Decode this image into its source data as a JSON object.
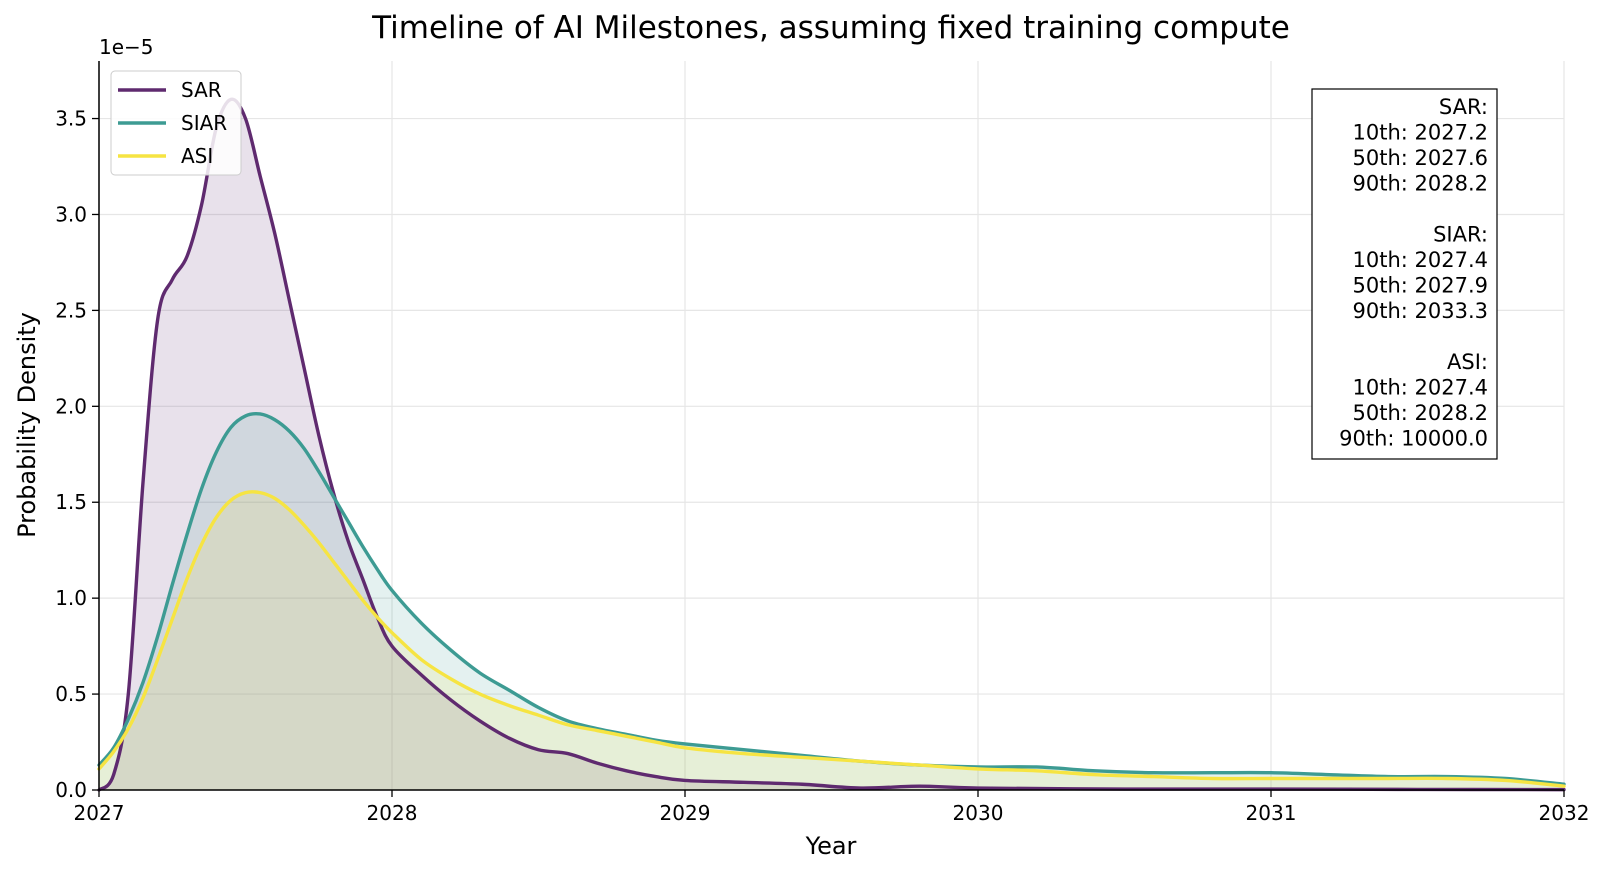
{
  "chart_data": {
    "type": "area",
    "title": "Timeline of AI Milestones, assuming fixed training compute",
    "xlabel": "Year",
    "ylabel": "Probability Density",
    "y_multiplier_label": "1e−5",
    "xlim": [
      2027,
      2032
    ],
    "ylim": [
      0,
      3.8
    ],
    "x_ticks": [
      "2027",
      "2028",
      "2029",
      "2030",
      "2031",
      "2032"
    ],
    "y_ticks": [
      "0.0",
      "0.5",
      "1.0",
      "1.5",
      "2.0",
      "2.5",
      "3.0",
      "3.5"
    ],
    "grid": true,
    "legend_position": "top-left",
    "series": [
      {
        "name": "SAR",
        "color": "#5f2a6f",
        "points": [
          [
            2027.0,
            0.0
          ],
          [
            2027.05,
            0.08
          ],
          [
            2027.1,
            0.5
          ],
          [
            2027.15,
            1.6
          ],
          [
            2027.2,
            2.45
          ],
          [
            2027.25,
            2.66
          ],
          [
            2027.3,
            2.78
          ],
          [
            2027.35,
            3.05
          ],
          [
            2027.4,
            3.45
          ],
          [
            2027.45,
            3.6
          ],
          [
            2027.5,
            3.5
          ],
          [
            2027.55,
            3.2
          ],
          [
            2027.6,
            2.9
          ],
          [
            2027.65,
            2.55
          ],
          [
            2027.7,
            2.2
          ],
          [
            2027.75,
            1.85
          ],
          [
            2027.8,
            1.55
          ],
          [
            2027.85,
            1.3
          ],
          [
            2027.9,
            1.1
          ],
          [
            2027.95,
            0.9
          ],
          [
            2028.0,
            0.75
          ],
          [
            2028.1,
            0.6
          ],
          [
            2028.2,
            0.47
          ],
          [
            2028.3,
            0.36
          ],
          [
            2028.4,
            0.27
          ],
          [
            2028.5,
            0.21
          ],
          [
            2028.6,
            0.19
          ],
          [
            2028.7,
            0.14
          ],
          [
            2028.8,
            0.1
          ],
          [
            2028.9,
            0.07
          ],
          [
            2029.0,
            0.05
          ],
          [
            2029.2,
            0.04
          ],
          [
            2029.4,
            0.03
          ],
          [
            2029.6,
            0.01
          ],
          [
            2029.8,
            0.02
          ],
          [
            2030.0,
            0.01
          ],
          [
            2030.5,
            0.005
          ],
          [
            2031.0,
            0.005
          ],
          [
            2031.5,
            0.003
          ],
          [
            2032.0,
            0.002
          ]
        ]
      },
      {
        "name": "SIAR",
        "color": "#3d9b93",
        "points": [
          [
            2027.0,
            0.13
          ],
          [
            2027.05,
            0.22
          ],
          [
            2027.1,
            0.37
          ],
          [
            2027.15,
            0.56
          ],
          [
            2027.2,
            0.8
          ],
          [
            2027.25,
            1.07
          ],
          [
            2027.3,
            1.33
          ],
          [
            2027.35,
            1.57
          ],
          [
            2027.4,
            1.76
          ],
          [
            2027.45,
            1.89
          ],
          [
            2027.5,
            1.95
          ],
          [
            2027.55,
            1.96
          ],
          [
            2027.6,
            1.93
          ],
          [
            2027.65,
            1.87
          ],
          [
            2027.7,
            1.78
          ],
          [
            2027.75,
            1.66
          ],
          [
            2027.8,
            1.53
          ],
          [
            2027.85,
            1.4
          ],
          [
            2027.9,
            1.27
          ],
          [
            2027.95,
            1.15
          ],
          [
            2028.0,
            1.04
          ],
          [
            2028.1,
            0.87
          ],
          [
            2028.2,
            0.73
          ],
          [
            2028.3,
            0.61
          ],
          [
            2028.4,
            0.52
          ],
          [
            2028.5,
            0.43
          ],
          [
            2028.6,
            0.36
          ],
          [
            2028.7,
            0.32
          ],
          [
            2028.8,
            0.29
          ],
          [
            2028.9,
            0.26
          ],
          [
            2029.0,
            0.24
          ],
          [
            2029.2,
            0.21
          ],
          [
            2029.4,
            0.18
          ],
          [
            2029.6,
            0.15
          ],
          [
            2029.8,
            0.13
          ],
          [
            2030.0,
            0.12
          ],
          [
            2030.2,
            0.12
          ],
          [
            2030.4,
            0.1
          ],
          [
            2030.6,
            0.09
          ],
          [
            2030.8,
            0.09
          ],
          [
            2031.0,
            0.09
          ],
          [
            2031.2,
            0.08
          ],
          [
            2031.4,
            0.07
          ],
          [
            2031.6,
            0.07
          ],
          [
            2031.8,
            0.06
          ],
          [
            2032.0,
            0.03
          ]
        ]
      },
      {
        "name": "ASI",
        "color": "#f6e442",
        "points": [
          [
            2027.0,
            0.11
          ],
          [
            2027.05,
            0.2
          ],
          [
            2027.1,
            0.32
          ],
          [
            2027.15,
            0.48
          ],
          [
            2027.2,
            0.68
          ],
          [
            2027.25,
            0.89
          ],
          [
            2027.3,
            1.1
          ],
          [
            2027.35,
            1.28
          ],
          [
            2027.4,
            1.42
          ],
          [
            2027.45,
            1.51
          ],
          [
            2027.5,
            1.55
          ],
          [
            2027.55,
            1.55
          ],
          [
            2027.6,
            1.52
          ],
          [
            2027.65,
            1.46
          ],
          [
            2027.7,
            1.38
          ],
          [
            2027.75,
            1.29
          ],
          [
            2027.8,
            1.19
          ],
          [
            2027.85,
            1.09
          ],
          [
            2027.9,
            0.99
          ],
          [
            2027.95,
            0.9
          ],
          [
            2028.0,
            0.82
          ],
          [
            2028.1,
            0.68
          ],
          [
            2028.2,
            0.58
          ],
          [
            2028.3,
            0.5
          ],
          [
            2028.4,
            0.44
          ],
          [
            2028.5,
            0.39
          ],
          [
            2028.6,
            0.34
          ],
          [
            2028.7,
            0.31
          ],
          [
            2028.8,
            0.28
          ],
          [
            2028.9,
            0.25
          ],
          [
            2029.0,
            0.22
          ],
          [
            2029.2,
            0.19
          ],
          [
            2029.4,
            0.17
          ],
          [
            2029.6,
            0.15
          ],
          [
            2029.8,
            0.13
          ],
          [
            2030.0,
            0.11
          ],
          [
            2030.2,
            0.1
          ],
          [
            2030.4,
            0.08
          ],
          [
            2030.6,
            0.07
          ],
          [
            2030.8,
            0.06
          ],
          [
            2031.0,
            0.06
          ],
          [
            2031.2,
            0.06
          ],
          [
            2031.4,
            0.06
          ],
          [
            2031.6,
            0.06
          ],
          [
            2031.8,
            0.05
          ],
          [
            2032.0,
            0.02
          ]
        ]
      }
    ],
    "stats_box": {
      "lines": [
        "SAR:",
        "10th: 2027.2",
        "50th: 2027.6",
        "90th: 2028.2",
        "",
        "SIAR:",
        "10th: 2027.4",
        "50th: 2027.9",
        "90th: 2033.3",
        "",
        "ASI:",
        "10th: 2027.4",
        "50th: 2028.2",
        "90th: 10000.0"
      ]
    }
  }
}
